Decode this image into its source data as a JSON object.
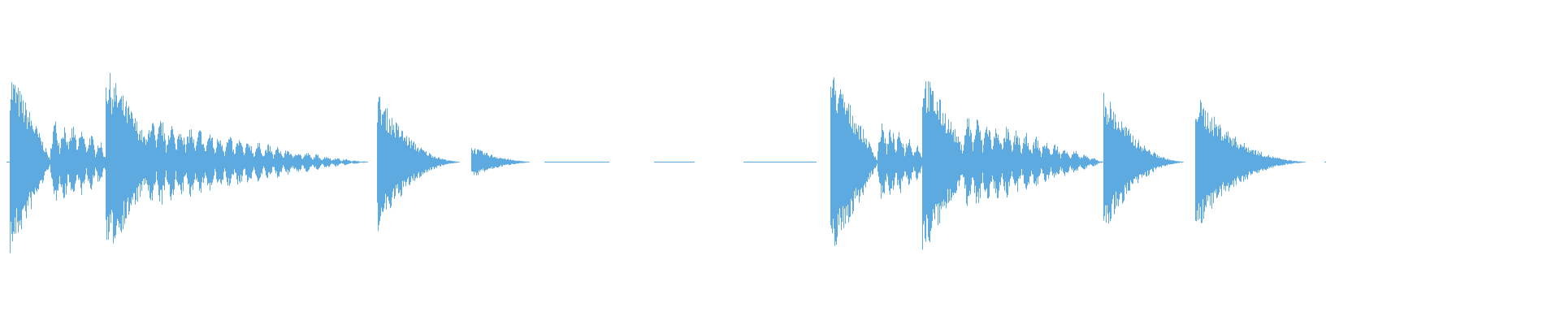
{
  "waveform": {
    "color": "#5DAAE0",
    "background": "#FFFFFF"
  }
}
